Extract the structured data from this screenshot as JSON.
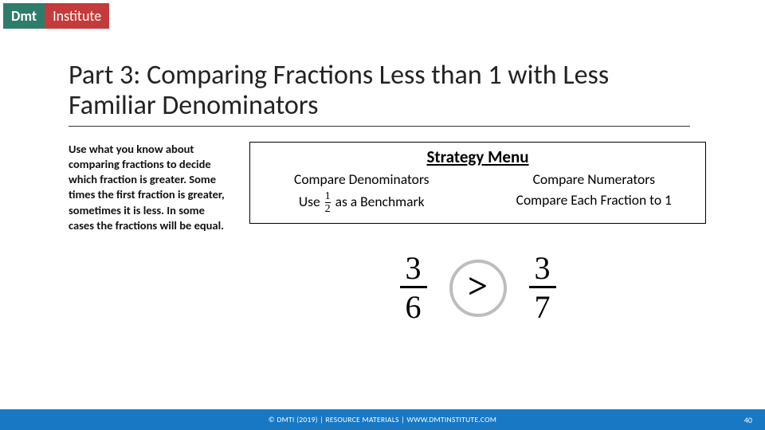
{
  "brand": {
    "left": "Dmt",
    "right": "Institute",
    "left_bg": "#2e7d6b",
    "right_bg": "#c43b3b",
    "text_color": "#ffffff"
  },
  "title": "Part 3: Comparing Fractions Less than 1 with Less Familiar Denominators",
  "instructions": "Use what you know about comparing fractions to decide which fraction is greater. Some times the first fraction is greater, sometimes it is less. In some cases the fractions will be equal.",
  "strategy": {
    "heading": "Strategy Menu",
    "cells": {
      "tl": "Compare Denominators",
      "tr": "Compare Numerators",
      "bl_prefix": "Use ",
      "bl_frac": {
        "n": "1",
        "d": "2"
      },
      "bl_suffix": " as a Benchmark",
      "br": "Compare Each Fraction to 1"
    },
    "border_color": "#000000",
    "title_fontsize": 21,
    "cell_fontsize": 17.5
  },
  "comparison": {
    "left": {
      "n": "3",
      "d": "6"
    },
    "symbol": ">",
    "right": {
      "n": "3",
      "d": "7"
    },
    "circle_border": "#bdbdbd",
    "frac_fontsize": 40,
    "symbol_fontsize": 44
  },
  "footer": {
    "text": "© DMTI (2019) | RESOURCE MATERIALS | WWW.DMTINSTITUTE.COM",
    "page": "40",
    "bg": "#1978c4",
    "text_color": "#ffffff"
  }
}
